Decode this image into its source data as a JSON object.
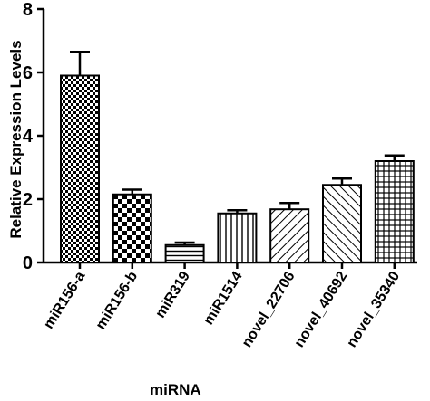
{
  "chart_data": {
    "type": "bar",
    "title": "",
    "xlabel": "miRNA",
    "ylabel": "Relative Expression Levels",
    "ylim": [
      0,
      8
    ],
    "yticks": [
      0,
      2,
      4,
      6,
      8
    ],
    "grid": false,
    "categories": [
      "miR156-a",
      "miR156-b",
      "miR319",
      "miR1514",
      "novel_22706",
      "novel_40692",
      "novel_35340"
    ],
    "values": [
      5.9,
      2.15,
      0.55,
      1.55,
      1.68,
      2.45,
      3.2
    ],
    "errors": [
      0.75,
      0.15,
      0.08,
      0.1,
      0.2,
      0.2,
      0.18
    ],
    "patterns": [
      "checker-fine",
      "checker-coarse",
      "horizontal-lines",
      "vertical-lines",
      "diagonal-up",
      "diagonal-down",
      "grid"
    ]
  }
}
